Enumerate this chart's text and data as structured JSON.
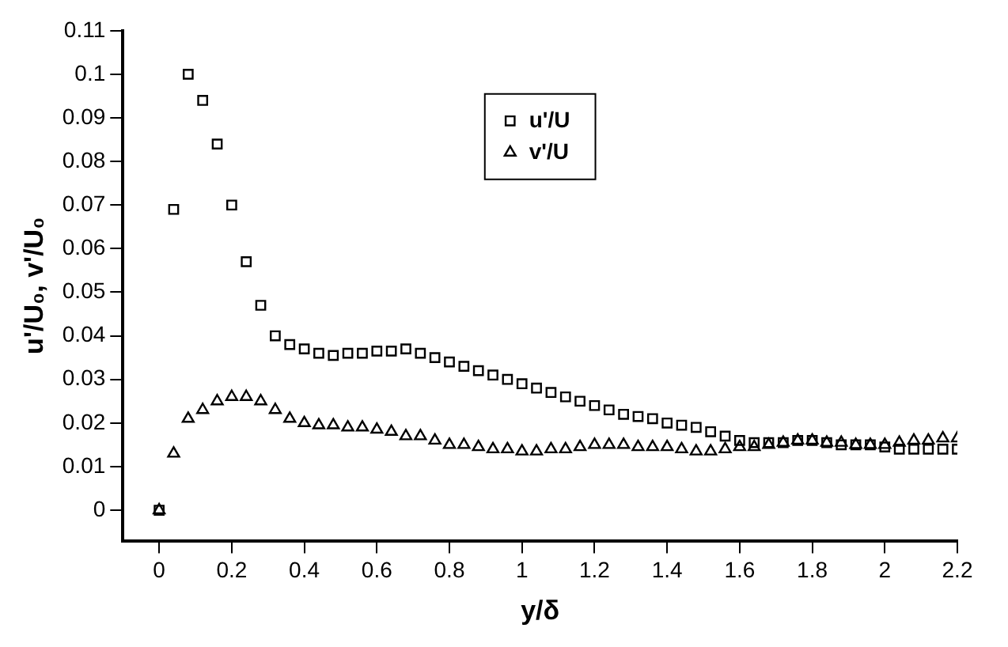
{
  "chart_data": {
    "type": "scatter",
    "xlabel": "y/δ",
    "ylabel": "u'/U₀, v'/U₀",
    "xlim": [
      -0.1,
      2.2
    ],
    "ylim": [
      -0.007,
      0.11
    ],
    "xticks": [
      0,
      0.2,
      0.4,
      0.6,
      0.8,
      1,
      1.2,
      1.4,
      1.6,
      1.8,
      2,
      2.2
    ],
    "yticks": [
      0,
      0.01,
      0.02,
      0.03,
      0.04,
      0.05,
      0.06,
      0.07,
      0.08,
      0.09,
      0.1,
      0.11
    ],
    "grid": false,
    "legend": "top",
    "x": [
      0,
      0.04,
      0.08,
      0.12,
      0.16,
      0.2,
      0.24,
      0.28,
      0.32,
      0.36,
      0.4,
      0.44,
      0.48,
      0.52,
      0.56,
      0.6,
      0.64,
      0.68,
      0.72,
      0.76,
      0.8,
      0.84,
      0.88,
      0.92,
      0.96,
      1,
      1.04,
      1.08,
      1.12,
      1.16,
      1.2,
      1.24,
      1.28,
      1.32,
      1.36,
      1.4,
      1.44,
      1.48,
      1.52,
      1.56,
      1.6,
      1.64,
      1.68,
      1.72,
      1.76,
      1.8,
      1.84,
      1.88,
      1.92,
      1.96,
      2,
      2.04,
      2.08,
      2.12,
      2.16,
      2.2
    ],
    "series": [
      {
        "name": "u'/U",
        "color": "#000000",
        "marker": "square",
        "values": [
          0,
          0.069,
          0.1,
          0.094,
          0.084,
          0.07,
          0.057,
          0.047,
          0.04,
          0.038,
          0.037,
          0.036,
          0.0355,
          0.036,
          0.036,
          0.0365,
          0.0365,
          0.037,
          0.036,
          0.035,
          0.034,
          0.033,
          0.032,
          0.031,
          0.03,
          0.029,
          0.028,
          0.027,
          0.026,
          0.025,
          0.024,
          0.023,
          0.022,
          0.0215,
          0.021,
          0.02,
          0.0195,
          0.019,
          0.018,
          0.017,
          0.016,
          0.0155,
          0.0155,
          0.0155,
          0.016,
          0.016,
          0.0155,
          0.015,
          0.015,
          0.015,
          0.0145,
          0.014,
          0.014,
          0.014,
          0.014,
          0.014
        ]
      },
      {
        "name": "v'/U",
        "color": "#000000",
        "marker": "triangle",
        "values": [
          0,
          0.013,
          0.021,
          0.023,
          0.025,
          0.026,
          0.026,
          0.025,
          0.023,
          0.021,
          0.02,
          0.0195,
          0.0195,
          0.019,
          0.019,
          0.0185,
          0.018,
          0.017,
          0.017,
          0.016,
          0.015,
          0.015,
          0.0145,
          0.014,
          0.014,
          0.0135,
          0.0135,
          0.014,
          0.014,
          0.0145,
          0.015,
          0.015,
          0.015,
          0.0145,
          0.0145,
          0.0145,
          0.014,
          0.0135,
          0.0135,
          0.014,
          0.0145,
          0.0145,
          0.015,
          0.0155,
          0.016,
          0.016,
          0.0155,
          0.0155,
          0.015,
          0.015,
          0.015,
          0.0155,
          0.016,
          0.016,
          0.0165,
          0.0165
        ]
      }
    ]
  }
}
